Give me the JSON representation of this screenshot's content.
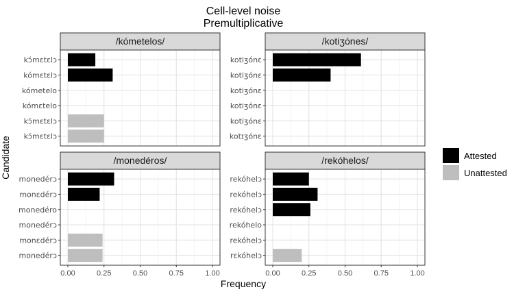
{
  "chart_data": {
    "type": "bar",
    "orientation": "horizontal",
    "title": "Cell-level noise",
    "subtitle": "Premultiplicative",
    "xlabel": "Frequency",
    "ylabel": "Candidate",
    "xlim": [
      0,
      1
    ],
    "x_ticks": [
      "0.00",
      "0.25",
      "0.50",
      "0.75",
      "1.00"
    ],
    "grid": true,
    "legend_position": "right",
    "legend": [
      {
        "name": "Attested",
        "color": "#000000"
      },
      {
        "name": "Unattested",
        "color": "#bebebe"
      }
    ],
    "facets": [
      {
        "title": "/kómetelos/",
        "candidates": [
          "kɔ́mɛtɛlɔ",
          "kómɛtɛlɔ",
          "kómetelo",
          "kómɛtelo",
          "kɔ́mɛtɛlɔ",
          "kɔ́mɛtɛlɔ"
        ],
        "values": [
          0.19,
          0.31,
          0,
          0,
          0.25,
          0.25
        ],
        "status": [
          "Attested",
          "Attested",
          "Attested",
          "Attested",
          "Unattested",
          "Unattested"
        ]
      },
      {
        "title": "/kotiʒónes/",
        "candidates": [
          "kotiʒónɛ",
          "kotiʒónɛ",
          "kotiʒónɛ",
          "kotiʒónɛ",
          "kotiʒónɛ",
          "kotɪʒónɛ"
        ],
        "values": [
          0.61,
          0.4,
          0,
          0,
          0,
          0
        ],
        "status": [
          "Attested",
          "Attested",
          "Attested",
          "Attested",
          "Unattested",
          "Unattested"
        ]
      },
      {
        "title": "/monedéros/",
        "candidates": [
          "monedérɔ",
          "monɛdérɔ",
          "monedéro",
          "monedérɔ",
          "monɛdérɔ",
          "monedérɔ"
        ],
        "values": [
          0.32,
          0.22,
          0,
          0,
          0.24,
          0.24
        ],
        "status": [
          "Attested",
          "Attested",
          "Attested",
          "Attested",
          "Unattested",
          "Unattested"
        ]
      },
      {
        "title": "/rekóhelos/",
        "candidates": [
          "rekóhelɔ",
          "rekóhelɔ",
          "rekóhelɔ",
          "rekóhelo",
          "rekóhelɔ",
          "rɛkóhelɔ"
        ],
        "values": [
          0.25,
          0.31,
          0.26,
          0,
          0,
          0.2
        ],
        "status": [
          "Attested",
          "Attested",
          "Attested",
          "Attested",
          "Attested",
          "Unattested"
        ]
      }
    ]
  }
}
